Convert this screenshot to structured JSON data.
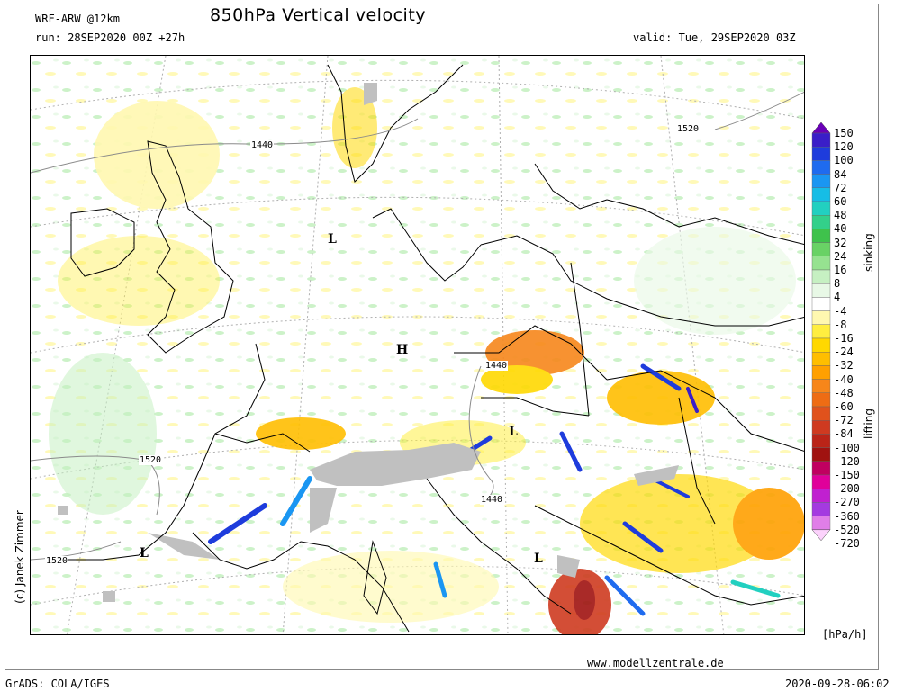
{
  "header": {
    "model": "WRF-ARW @12km",
    "title": "850hPa Vertical velocity",
    "run": "run: 28SEP2020 00Z +27h",
    "valid": "valid: Tue, 29SEP2020 03Z"
  },
  "map": {
    "pressure_centers": [
      {
        "label": "L"
      },
      {
        "label": "H"
      },
      {
        "label": "L"
      },
      {
        "label": "L"
      },
      {
        "label": "L"
      }
    ],
    "isohypse_labels": [
      "1440",
      "1520",
      "1440",
      "1520",
      "1440",
      "1520"
    ],
    "copyright": "(c) Janek Zimmer"
  },
  "legend": {
    "title_sinking": "sinking",
    "title_lifting": "lifting",
    "unit": "[hPa/h]",
    "levels": [
      "150",
      "120",
      "100",
      "84",
      "72",
      "60",
      "48",
      "40",
      "32",
      "24",
      "16",
      "8",
      "4",
      "-4",
      "-8",
      "-16",
      "-24",
      "-32",
      "-40",
      "-48",
      "-60",
      "-72",
      "-84",
      "-100",
      "-120",
      "-150",
      "-200",
      "-270",
      "-360",
      "-520",
      "-720"
    ],
    "colors": [
      "#6a00b8",
      "#3a1ec8",
      "#1e3cdc",
      "#1f6bef",
      "#1a96f2",
      "#16bde6",
      "#22d0c0",
      "#33d08a",
      "#3fc24c",
      "#69d265",
      "#96e290",
      "#c6f0c2",
      "#e8f8e6",
      "#ffffff",
      "#fff8b0",
      "#ffee40",
      "#ffd800",
      "#ffbe00",
      "#ffa000",
      "#f7861a",
      "#ee6c14",
      "#e0521c",
      "#cf3a20",
      "#ba2418",
      "#a01210",
      "#c00060",
      "#e0009a",
      "#c020d0",
      "#a43ae0",
      "#e07ee8",
      "#fcd2fc"
    ]
  },
  "footer": {
    "website": "www.modellzentrale.de",
    "software": "GrADS: COLA/IGES",
    "timestamp": "2020-09-28-06:02"
  }
}
